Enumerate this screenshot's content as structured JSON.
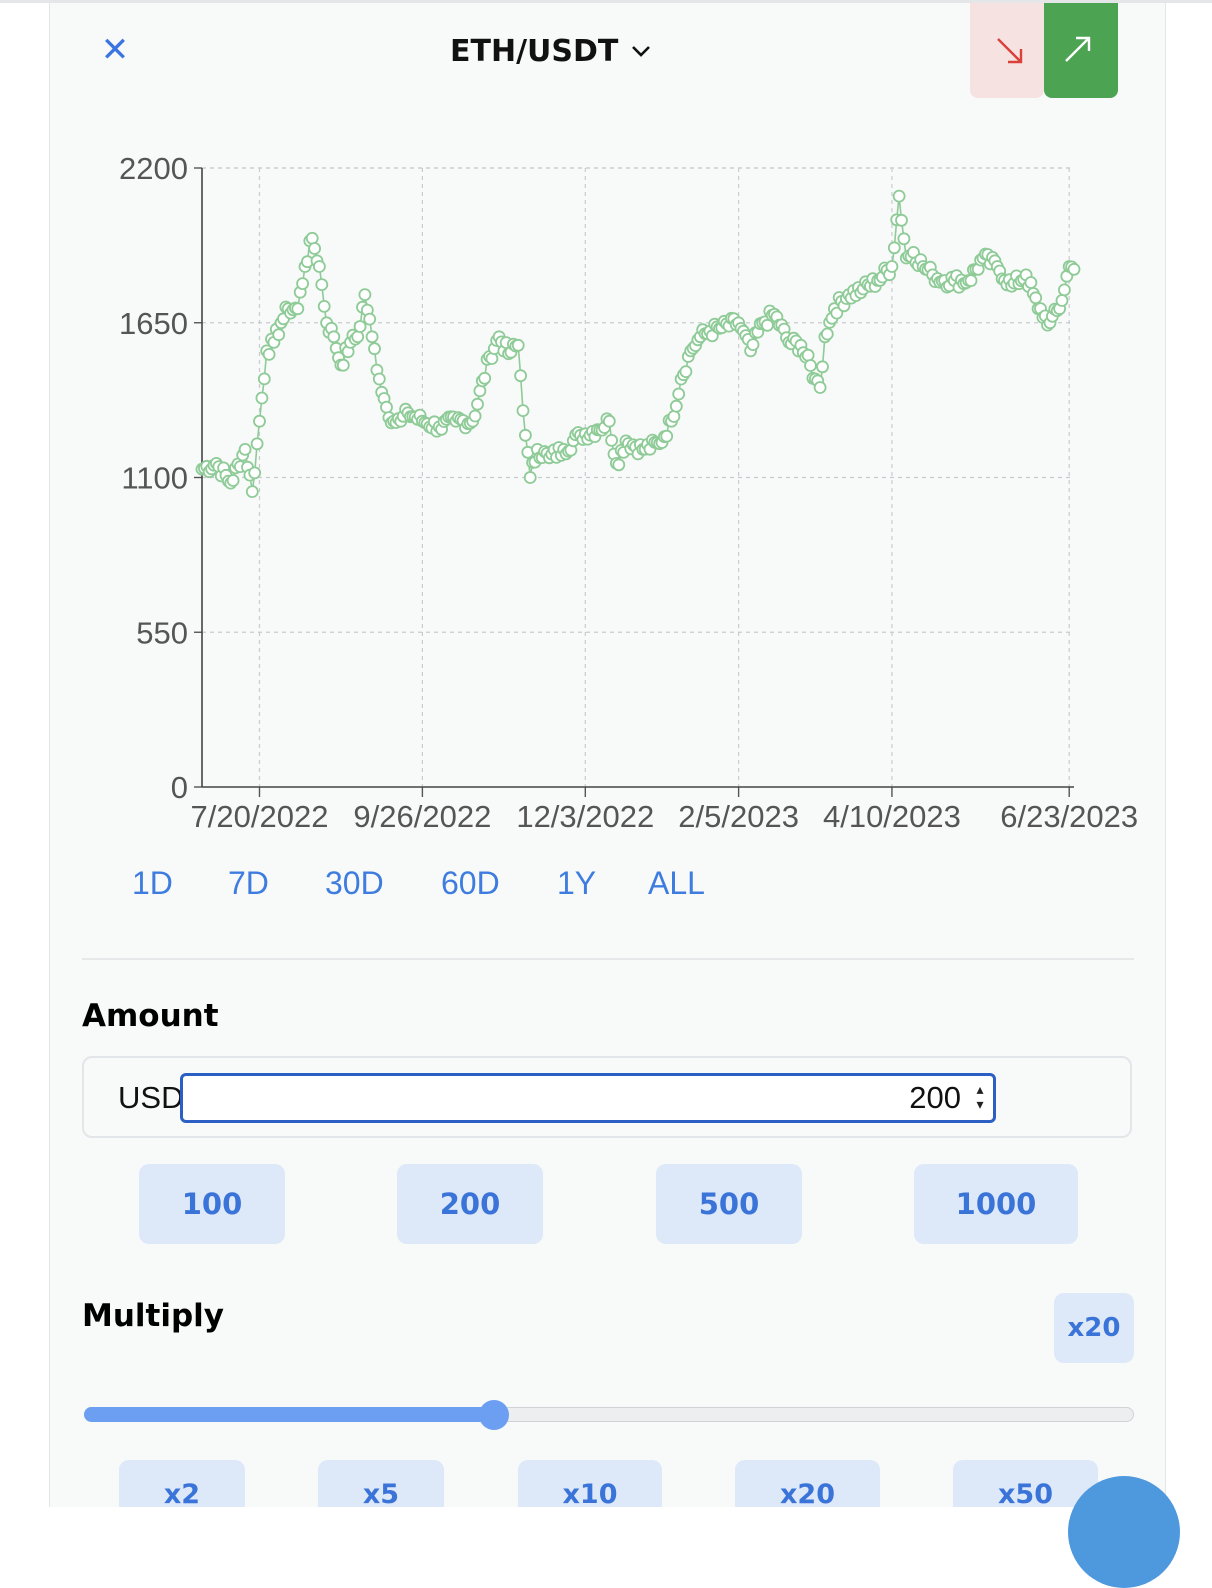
{
  "header": {
    "close_icon": "✕",
    "pair_title": "ETH/USDT",
    "chevron_icon": "chevron-down",
    "sell_icon": "arrow-down-right",
    "buy_icon": "arrow-up-right"
  },
  "colors": {
    "accent": "#3e7ddf",
    "chart_line": "#8ecb97",
    "sell": "#d9413a",
    "buy": "#4ca453"
  },
  "chart_data": {
    "type": "line",
    "title": "",
    "xlabel": "",
    "ylabel": "",
    "x_tick_labels": [
      "7/20/2022",
      "9/26/2022",
      "12/3/2022",
      "2/5/2023",
      "4/10/2023",
      "6/23/2023"
    ],
    "y_ticks": [
      0,
      550,
      1100,
      1650,
      2200
    ],
    "ylim": [
      0,
      2200
    ],
    "xlim": [
      "2022-06-26",
      "2023-06-25"
    ],
    "grid": true,
    "legend": "none",
    "series": [
      {
        "name": "",
        "x": [
          "2022-06-26",
          "2022-07-02",
          "2022-07-08",
          "2022-07-14",
          "2022-07-17",
          "2022-07-20",
          "2022-07-23",
          "2022-07-26",
          "2022-07-29",
          "2022-08-01",
          "2022-08-05",
          "2022-08-08",
          "2022-08-11",
          "2022-08-14",
          "2022-08-17",
          "2022-08-20",
          "2022-08-23",
          "2022-08-27",
          "2022-08-30",
          "2022-09-02",
          "2022-09-05",
          "2022-09-08",
          "2022-09-11",
          "2022-09-14",
          "2022-09-17",
          "2022-09-20",
          "2022-09-26",
          "2022-10-03",
          "2022-10-10",
          "2022-10-17",
          "2022-10-24",
          "2022-10-28",
          "2022-11-01",
          "2022-11-05",
          "2022-11-08",
          "2022-11-10",
          "2022-11-13",
          "2022-11-18",
          "2022-11-24",
          "2022-12-01",
          "2022-12-08",
          "2022-12-13",
          "2022-12-16",
          "2022-12-20",
          "2022-12-27",
          "2023-01-03",
          "2023-01-08",
          "2023-01-12",
          "2023-01-16",
          "2023-01-20",
          "2023-01-24",
          "2023-01-28",
          "2023-02-05",
          "2023-02-10",
          "2023-02-15",
          "2023-02-20",
          "2023-02-26",
          "2023-03-03",
          "2023-03-09",
          "2023-03-11",
          "2023-03-13",
          "2023-03-17",
          "2023-03-23",
          "2023-03-29",
          "2023-04-04",
          "2023-04-10",
          "2023-04-13",
          "2023-04-16",
          "2023-04-19",
          "2023-04-23",
          "2023-04-27",
          "2023-05-02",
          "2023-05-06",
          "2023-05-12",
          "2023-05-18",
          "2023-05-24",
          "2023-05-30",
          "2023-06-05",
          "2023-06-10",
          "2023-06-15",
          "2023-06-19",
          "2023-06-23",
          "2023-06-25"
        ],
        "values": [
          1130,
          1150,
          1080,
          1200,
          1050,
          1300,
          1550,
          1580,
          1650,
          1700,
          1700,
          1850,
          1950,
          1850,
          1650,
          1600,
          1500,
          1580,
          1600,
          1750,
          1600,
          1450,
          1350,
          1300,
          1300,
          1330,
          1300,
          1280,
          1300,
          1300,
          1530,
          1600,
          1540,
          1570,
          1250,
          1100,
          1200,
          1170,
          1200,
          1250,
          1270,
          1300,
          1150,
          1230,
          1200,
          1220,
          1300,
          1450,
          1550,
          1600,
          1620,
          1630,
          1650,
          1550,
          1650,
          1680,
          1580,
          1570,
          1450,
          1420,
          1600,
          1700,
          1750,
          1770,
          1800,
          1850,
          2100,
          1880,
          1900,
          1850,
          1820,
          1800,
          1800,
          1800,
          1880,
          1850,
          1780,
          1820,
          1700,
          1650,
          1700,
          1850,
          1840
        ]
      }
    ]
  },
  "periods": [
    "1D",
    "7D",
    "30D",
    "60D",
    "1Y",
    "ALL"
  ],
  "amount": {
    "title": "Amount",
    "currency": "USD",
    "value": "200",
    "presets": [
      "100",
      "200",
      "500",
      "1000"
    ]
  },
  "multiply": {
    "title": "Multiply",
    "current": "x20",
    "slider_fraction": 0.39,
    "presets": [
      "x2",
      "x5",
      "x10",
      "x20",
      "x50"
    ]
  }
}
